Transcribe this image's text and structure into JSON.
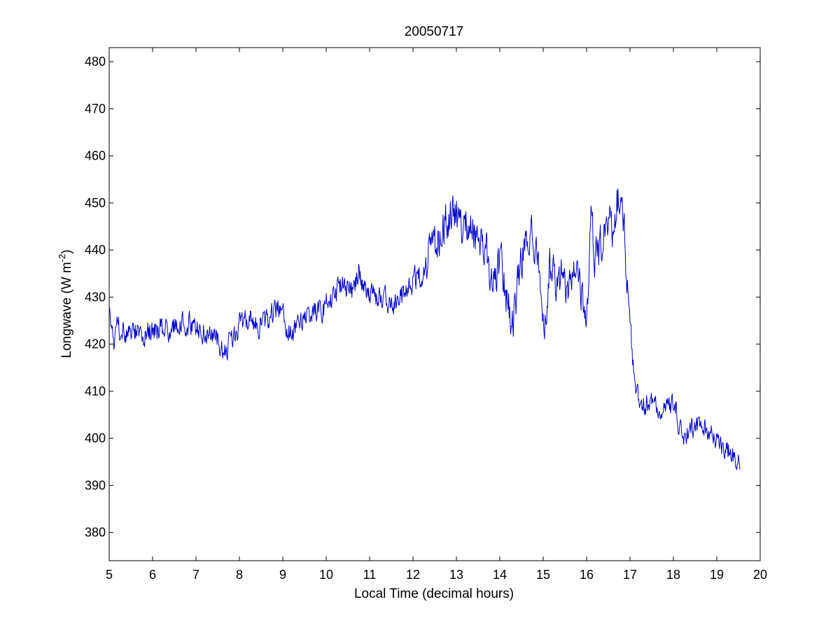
{
  "chart_data": {
    "type": "line",
    "title": "20050717",
    "xlabel": "Local Time (decimal hours)",
    "ylabel_main": "Longwave (W m",
    "ylabel_sup": "-2",
    "ylabel_close": ")",
    "xlim": [
      5,
      20
    ],
    "ylim": [
      374,
      483
    ],
    "xticks": [
      5,
      6,
      7,
      8,
      9,
      10,
      11,
      12,
      13,
      14,
      15,
      16,
      17,
      18,
      19,
      20
    ],
    "yticks": [
      380,
      390,
      400,
      410,
      420,
      430,
      440,
      450,
      460,
      470,
      480
    ],
    "grid": false,
    "series": [
      {
        "color": "#0000cc",
        "anchors": [
          [
            5.0,
            426
          ],
          [
            5.1,
            420
          ],
          [
            5.2,
            424
          ],
          [
            5.3,
            422
          ],
          [
            5.5,
            423
          ],
          [
            5.7,
            422
          ],
          [
            6.0,
            423
          ],
          [
            6.3,
            423
          ],
          [
            6.6,
            424
          ],
          [
            7.0,
            424
          ],
          [
            7.3,
            422
          ],
          [
            7.5,
            421
          ],
          [
            7.65,
            417
          ],
          [
            7.8,
            421
          ],
          [
            8.0,
            424
          ],
          [
            8.3,
            425
          ],
          [
            8.6,
            424
          ],
          [
            8.9,
            428
          ],
          [
            9.05,
            425
          ],
          [
            9.2,
            422
          ],
          [
            9.5,
            426
          ],
          [
            9.8,
            427
          ],
          [
            10.1,
            429
          ],
          [
            10.4,
            433
          ],
          [
            10.6,
            431
          ],
          [
            10.75,
            436
          ],
          [
            10.9,
            431
          ],
          [
            11.2,
            430
          ],
          [
            11.5,
            429
          ],
          [
            11.8,
            430
          ],
          [
            12.0,
            433
          ],
          [
            12.2,
            435
          ],
          [
            12.4,
            440
          ],
          [
            12.6,
            442
          ],
          [
            12.8,
            447
          ],
          [
            12.95,
            449
          ],
          [
            13.1,
            445
          ],
          [
            13.3,
            446
          ],
          [
            13.5,
            442
          ],
          [
            13.7,
            439
          ],
          [
            13.85,
            433
          ],
          [
            14.0,
            438
          ],
          [
            14.15,
            430
          ],
          [
            14.3,
            425
          ],
          [
            14.5,
            438
          ],
          [
            14.7,
            445
          ],
          [
            14.85,
            442
          ],
          [
            15.0,
            423
          ],
          [
            15.15,
            436
          ],
          [
            15.3,
            432
          ],
          [
            15.45,
            434
          ],
          [
            15.6,
            430
          ],
          [
            15.75,
            440
          ],
          [
            15.85,
            433
          ],
          [
            16.0,
            423
          ],
          [
            16.1,
            445
          ],
          [
            16.2,
            438
          ],
          [
            16.3,
            440
          ],
          [
            16.45,
            447
          ],
          [
            16.6,
            445
          ],
          [
            16.75,
            453
          ],
          [
            16.82,
            455
          ],
          [
            16.92,
            434
          ],
          [
            17.0,
            425
          ],
          [
            17.05,
            418
          ],
          [
            17.15,
            409
          ],
          [
            17.3,
            407
          ],
          [
            17.5,
            408
          ],
          [
            17.7,
            405
          ],
          [
            17.9,
            407
          ],
          [
            18.05,
            407
          ],
          [
            18.2,
            400
          ],
          [
            18.4,
            402
          ],
          [
            18.6,
            403
          ],
          [
            18.8,
            402
          ],
          [
            19.0,
            399
          ],
          [
            19.2,
            398
          ],
          [
            19.4,
            396
          ],
          [
            19.55,
            395
          ]
        ]
      }
    ]
  }
}
